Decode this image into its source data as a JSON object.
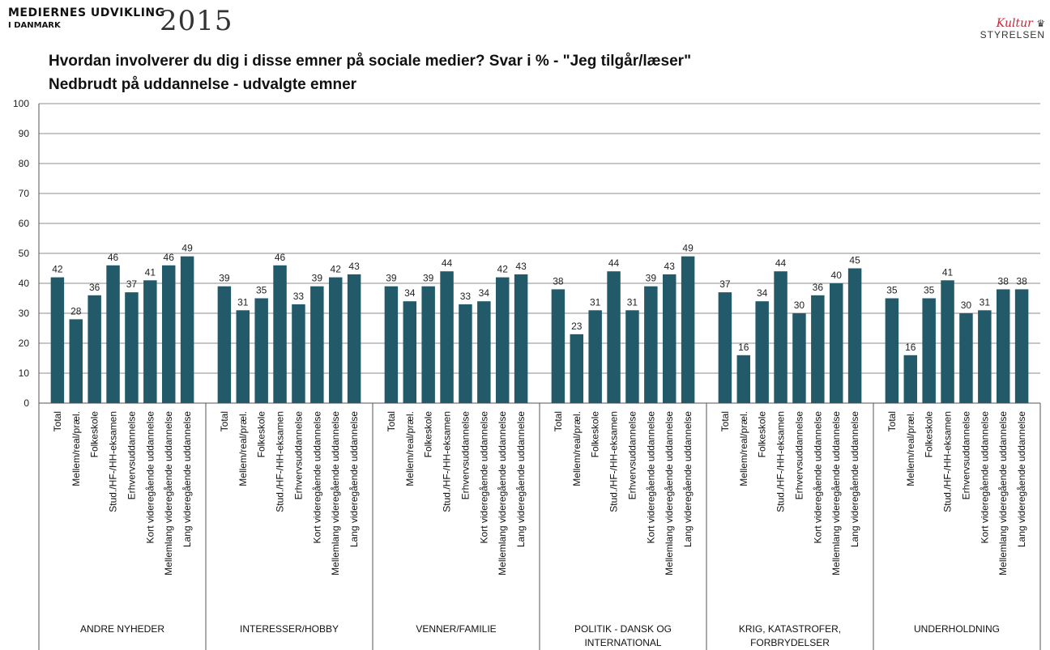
{
  "header": {
    "logo_line1": "MEDIERNES UDVIKLING",
    "logo_line2": "I DANMARK",
    "logo_year": "2015",
    "brand_kultur": "Kultur",
    "brand_styrelsen": "STYRELSEN"
  },
  "colors": {
    "bar": "#235a6a",
    "grid": "#8c8c8c",
    "axis": "#555555"
  },
  "chart_data": {
    "type": "bar",
    "title": "Hvordan involverer du dig i disse emner på sociale medier? Svar i % - \"Jeg tilgår/læser\"",
    "subtitle": "Nedbrudt på uddannelse - udvalgte emner",
    "ylim": [
      0,
      100
    ],
    "yticks": [
      0,
      10,
      20,
      30,
      40,
      50,
      60,
      70,
      80,
      90,
      100
    ],
    "grid": true,
    "legend": "none",
    "categories": [
      "Total",
      "Mellem/real/præl.",
      "Folkeskole",
      "Stud./HF-/HH-eksamen",
      "Erhvervsuddannelse",
      "Kort videregående uddannelse",
      "Mellemlang videregående uddannelse",
      "Lang videregående uddannelse"
    ],
    "groups": [
      {
        "name": [
          "ANDRE NYHEDER"
        ],
        "values": [
          42,
          28,
          36,
          46,
          37,
          41,
          46,
          49
        ]
      },
      {
        "name": [
          "INTERESSER/HOBBY"
        ],
        "values": [
          39,
          31,
          35,
          46,
          33,
          39,
          42,
          43
        ]
      },
      {
        "name": [
          "VENNER/FAMILIE"
        ],
        "values": [
          39,
          34,
          39,
          44,
          33,
          34,
          42,
          43
        ]
      },
      {
        "name": [
          "POLITIK - DANSK OG",
          "INTERNATIONAL"
        ],
        "values": [
          38,
          23,
          31,
          44,
          31,
          39,
          43,
          49
        ]
      },
      {
        "name": [
          "KRIG, KATASTROFER,",
          "FORBRYDELSER"
        ],
        "values": [
          37,
          16,
          34,
          44,
          30,
          36,
          40,
          45
        ]
      },
      {
        "name": [
          "UNDERHOLDNING"
        ],
        "values": [
          35,
          16,
          35,
          41,
          30,
          31,
          38,
          38
        ]
      }
    ]
  }
}
